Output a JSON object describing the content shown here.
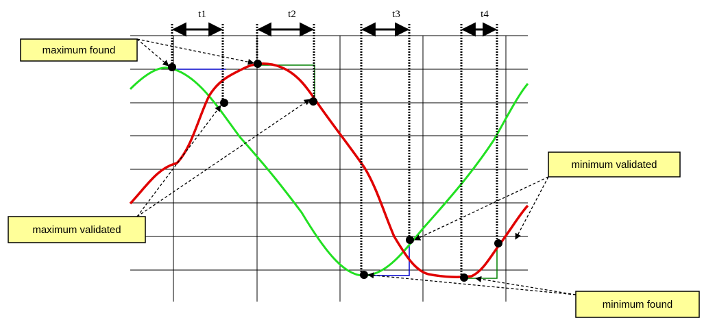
{
  "time_labels": [
    "t1",
    "t2",
    "t3",
    "t4"
  ],
  "callouts": {
    "maximum_found": "maximum found",
    "maximum_validated": "maximum validated",
    "minimum_validated": "minimum validated",
    "minimum_found": "minimum found"
  }
}
